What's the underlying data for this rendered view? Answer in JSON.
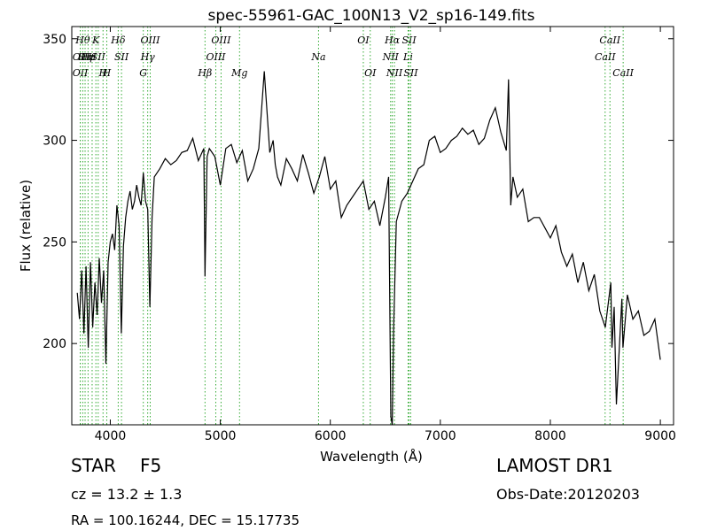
{
  "chart_data": {
    "type": "line",
    "title": "spec-55961-GAC_100N13_V2_sp16-149.fits",
    "xlabel": "Wavelength (Å)",
    "ylabel": "Flux (relative)",
    "xlim": [
      3650,
      9120
    ],
    "ylim": [
      160,
      356
    ],
    "xticks": [
      4000,
      5000,
      6000,
      7000,
      8000,
      9000
    ],
    "yticks": [
      200,
      250,
      300,
      350
    ],
    "grid": false,
    "line_color": "#000000",
    "marker_color": "#33aa33",
    "series": [
      {
        "x": [
          3700,
          3720,
          3740,
          3760,
          3780,
          3800,
          3820,
          3840,
          3860,
          3880,
          3900,
          3920,
          3940,
          3960,
          3980,
          4000,
          4020,
          4040,
          4060,
          4080,
          4100,
          4120,
          4140,
          4160,
          4180,
          4200,
          4220,
          4240,
          4260,
          4280,
          4300,
          4320,
          4340,
          4360,
          4380,
          4400,
          4450,
          4500,
          4550,
          4600,
          4650,
          4700,
          4750,
          4800,
          4850,
          4861,
          4880,
          4900,
          4950,
          5000,
          5050,
          5100,
          5150,
          5200,
          5250,
          5300,
          5350,
          5400,
          5450,
          5480,
          5500,
          5520,
          5550,
          5600,
          5650,
          5700,
          5750,
          5800,
          5850,
          5900,
          5950,
          6000,
          6050,
          6100,
          6150,
          6200,
          6250,
          6300,
          6350,
          6400,
          6450,
          6500,
          6530,
          6550,
          6563,
          6575,
          6600,
          6650,
          6700,
          6750,
          6800,
          6850,
          6900,
          6950,
          7000,
          7050,
          7100,
          7150,
          7200,
          7250,
          7300,
          7350,
          7400,
          7450,
          7500,
          7550,
          7600,
          7620,
          7640,
          7660,
          7700,
          7750,
          7800,
          7850,
          7900,
          7950,
          8000,
          8050,
          8100,
          8150,
          8200,
          8250,
          8300,
          8350,
          8400,
          8450,
          8500,
          8550,
          8560,
          8580,
          8600,
          8650,
          8660,
          8700,
          8750,
          8800,
          8850,
          8900,
          8950,
          9000
        ],
        "y": [
          225,
          212,
          236,
          205,
          238,
          198,
          240,
          208,
          230,
          214,
          242,
          220,
          236,
          190,
          240,
          250,
          254,
          246,
          268,
          258,
          205,
          248,
          262,
          270,
          275,
          266,
          270,
          278,
          272,
          268,
          284,
          270,
          266,
          218,
          262,
          282,
          286,
          291,
          288,
          290,
          294,
          295,
          301,
          290,
          296,
          233,
          292,
          296,
          292,
          278,
          296,
          298,
          289,
          295,
          280,
          286,
          296,
          334,
          294,
          300,
          288,
          282,
          278,
          291,
          286,
          280,
          293,
          284,
          274,
          282,
          292,
          276,
          280,
          262,
          268,
          272,
          276,
          280,
          266,
          270,
          258,
          272,
          282,
          164,
          160,
          206,
          260,
          270,
          274,
          280,
          286,
          288,
          300,
          302,
          294,
          296,
          300,
          302,
          306,
          303,
          305,
          298,
          301,
          310,
          316,
          304,
          295,
          330,
          268,
          282,
          272,
          276,
          260,
          262,
          262,
          257,
          252,
          258,
          245,
          238,
          244,
          230,
          240,
          226,
          234,
          216,
          208,
          230,
          198,
          218,
          170,
          222,
          198,
          224,
          212,
          216,
          204,
          206,
          212,
          192
        ]
      }
    ],
    "line_markers": [
      {
        "wl": 3727,
        "label": "OII",
        "row": 1
      },
      {
        "wl": 3727,
        "label": "OII",
        "row": 2
      },
      {
        "wl": 3750,
        "label": "Hθ",
        "row": 0
      },
      {
        "wl": 3771,
        "label": "Hη",
        "row": 1
      },
      {
        "wl": 3798,
        "label": "Hε",
        "row": 1
      },
      {
        "wl": 3835,
        "label": "H",
        "row": 1
      },
      {
        "wl": 3869,
        "label": "K",
        "row": 0
      },
      {
        "wl": 3890,
        "label": "SII",
        "row": 1
      },
      {
        "wl": 3934,
        "label": "H",
        "row": 2
      },
      {
        "wl": 3968,
        "label": "H",
        "row": 2
      },
      {
        "wl": 4072,
        "label": "Hδ",
        "row": 0
      },
      {
        "wl": 4102,
        "label": "SII",
        "row": 1
      },
      {
        "wl": 4300,
        "label": "G",
        "row": 2
      },
      {
        "wl": 4340,
        "label": "Hγ",
        "row": 1
      },
      {
        "wl": 4363,
        "label": "OIII",
        "row": 0
      },
      {
        "wl": 4861,
        "label": "Hβ",
        "row": 2
      },
      {
        "wl": 4959,
        "label": "OIII",
        "row": 1
      },
      {
        "wl": 5007,
        "label": "OIII",
        "row": 0
      },
      {
        "wl": 5175,
        "label": "Mg",
        "row": 2
      },
      {
        "wl": 5893,
        "label": "Na",
        "row": 1
      },
      {
        "wl": 6300,
        "label": "OI",
        "row": 0
      },
      {
        "wl": 6363,
        "label": "OI",
        "row": 2
      },
      {
        "wl": 6548,
        "label": "NII",
        "row": 1
      },
      {
        "wl": 6563,
        "label": "Hα",
        "row": 0
      },
      {
        "wl": 6583,
        "label": "NII",
        "row": 2
      },
      {
        "wl": 6707,
        "label": "Li",
        "row": 1
      },
      {
        "wl": 6716,
        "label": "SII",
        "row": 0
      },
      {
        "wl": 6731,
        "label": "SII",
        "row": 2
      },
      {
        "wl": 8498,
        "label": "CaII",
        "row": 1
      },
      {
        "wl": 8542,
        "label": "CaII",
        "row": 0
      },
      {
        "wl": 8662,
        "label": "CaII",
        "row": 2
      }
    ]
  },
  "info": {
    "object_class": "STAR",
    "subclass": "F5",
    "survey": "LAMOST DR1",
    "cz": "cz = 13.2  ± 1.3",
    "obs_date": "Obs-Date:20120203",
    "coords": "RA = 100.16244, DEC = 15.17735"
  }
}
